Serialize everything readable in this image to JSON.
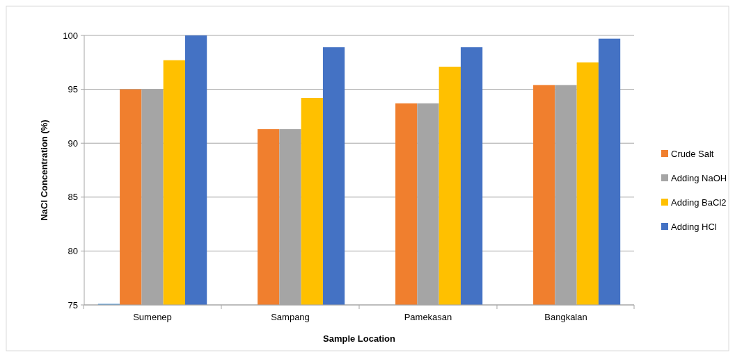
{
  "chart_data": {
    "type": "bar",
    "xlabel": "Sample Location",
    "ylabel": "NaCl Concentration (%)",
    "categories": [
      "Sumenep",
      "Sampang",
      "Pamekasan",
      "Bangkalan"
    ],
    "series": [
      {
        "color": "#5b9bd5",
        "values": [
          75.1,
          null,
          null,
          null
        ]
      },
      {
        "name": "Crude Salt",
        "color": "#f07f2e",
        "values": [
          95.0,
          91.3,
          93.7,
          95.4
        ]
      },
      {
        "name": "Adding NaOH",
        "color": "#a5a5a5",
        "values": [
          95.0,
          91.3,
          93.7,
          95.4
        ]
      },
      {
        "name": "Adding BaCl2",
        "color": "#ffc000",
        "values": [
          97.7,
          94.2,
          97.1,
          97.5
        ]
      },
      {
        "name": "Adding HCl",
        "color": "#4472c4",
        "values": [
          100,
          98.9,
          98.9,
          99.7
        ]
      }
    ],
    "ylim": [
      75,
      100
    ],
    "yticks": [
      75,
      80,
      85,
      90,
      95,
      100
    ],
    "grid": "y",
    "legend": "right"
  }
}
